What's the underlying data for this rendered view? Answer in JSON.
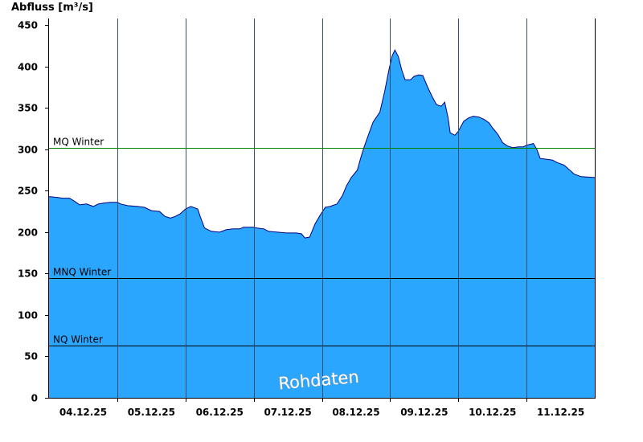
{
  "chart_data": {
    "type": "area",
    "ylabel": "Abfluss [m³/s]",
    "ylim": [
      0,
      458
    ],
    "yticks": [
      0,
      50,
      100,
      150,
      200,
      250,
      300,
      350,
      400,
      450
    ],
    "xlim": [
      0,
      8
    ],
    "x_unit": "days since 04.12.25 00:00",
    "x_categories": [
      "04.12.25",
      "05.12.25",
      "06.12.25",
      "07.12.25",
      "08.12.25",
      "09.12.25",
      "10.12.25",
      "11.12.25"
    ],
    "fill_color": "#2aa6ff",
    "line_color": "#000080",
    "grid": "vertical day separators",
    "reference_lines": [
      {
        "name": "MQ Winter",
        "value": 302,
        "color": "#008000"
      },
      {
        "name": "MNQ Winter",
        "value": 145,
        "color": "#000000"
      },
      {
        "name": "NQ Winter",
        "value": 63,
        "color": "#000000"
      }
    ],
    "watermark": "Rohdaten",
    "series": [
      {
        "name": "Abfluss",
        "points": [
          [
            0.0,
            243
          ],
          [
            0.12,
            242
          ],
          [
            0.2,
            241
          ],
          [
            0.3,
            241
          ],
          [
            0.38,
            237
          ],
          [
            0.45,
            233
          ],
          [
            0.55,
            234
          ],
          [
            0.65,
            231
          ],
          [
            0.72,
            234
          ],
          [
            0.8,
            235
          ],
          [
            0.9,
            236
          ],
          [
            1.0,
            236
          ],
          [
            1.05,
            234
          ],
          [
            1.15,
            232
          ],
          [
            1.3,
            231
          ],
          [
            1.4,
            230
          ],
          [
            1.5,
            226
          ],
          [
            1.62,
            225
          ],
          [
            1.7,
            219
          ],
          [
            1.78,
            217
          ],
          [
            1.85,
            219
          ],
          [
            1.92,
            222
          ],
          [
            2.0,
            228
          ],
          [
            2.08,
            231
          ],
          [
            2.18,
            228
          ],
          [
            2.22,
            218
          ],
          [
            2.28,
            205
          ],
          [
            2.38,
            201
          ],
          [
            2.5,
            200
          ],
          [
            2.6,
            203
          ],
          [
            2.7,
            204
          ],
          [
            2.8,
            204
          ],
          [
            2.85,
            206
          ],
          [
            3.0,
            206
          ],
          [
            3.05,
            205
          ],
          [
            3.15,
            204
          ],
          [
            3.22,
            201
          ],
          [
            3.35,
            200
          ],
          [
            3.48,
            199
          ],
          [
            3.62,
            199
          ],
          [
            3.7,
            198
          ],
          [
            3.75,
            193
          ],
          [
            3.82,
            194
          ],
          [
            3.9,
            210
          ],
          [
            3.97,
            220
          ],
          [
            4.05,
            230
          ],
          [
            4.12,
            231
          ],
          [
            4.22,
            234
          ],
          [
            4.3,
            244
          ],
          [
            4.36,
            256
          ],
          [
            4.43,
            266
          ],
          [
            4.52,
            275
          ],
          [
            4.57,
            290
          ],
          [
            4.62,
            303
          ],
          [
            4.68,
            317
          ],
          [
            4.75,
            333
          ],
          [
            4.85,
            345
          ],
          [
            4.92,
            370
          ],
          [
            4.98,
            395
          ],
          [
            5.03,
            413
          ],
          [
            5.07,
            420
          ],
          [
            5.12,
            412
          ],
          [
            5.17,
            396
          ],
          [
            5.22,
            384
          ],
          [
            5.3,
            384
          ],
          [
            5.35,
            388
          ],
          [
            5.42,
            390
          ],
          [
            5.48,
            389
          ],
          [
            5.55,
            375
          ],
          [
            5.62,
            363
          ],
          [
            5.68,
            354
          ],
          [
            5.75,
            352
          ],
          [
            5.8,
            357
          ],
          [
            5.85,
            338
          ],
          [
            5.88,
            320
          ],
          [
            5.95,
            317
          ],
          [
            6.0,
            322
          ],
          [
            6.08,
            334
          ],
          [
            6.15,
            338
          ],
          [
            6.22,
            340
          ],
          [
            6.3,
            339
          ],
          [
            6.38,
            336
          ],
          [
            6.45,
            332
          ],
          [
            6.5,
            326
          ],
          [
            6.58,
            318
          ],
          [
            6.65,
            308
          ],
          [
            6.72,
            304
          ],
          [
            6.8,
            302
          ],
          [
            6.88,
            303
          ],
          [
            6.95,
            303
          ],
          [
            7.0,
            305
          ],
          [
            7.1,
            307
          ],
          [
            7.15,
            300
          ],
          [
            7.2,
            289
          ],
          [
            7.3,
            288
          ],
          [
            7.38,
            287
          ],
          [
            7.45,
            284
          ],
          [
            7.55,
            281
          ],
          [
            7.62,
            276
          ],
          [
            7.7,
            270
          ],
          [
            7.8,
            267
          ],
          [
            8.0,
            266
          ]
        ]
      }
    ]
  }
}
